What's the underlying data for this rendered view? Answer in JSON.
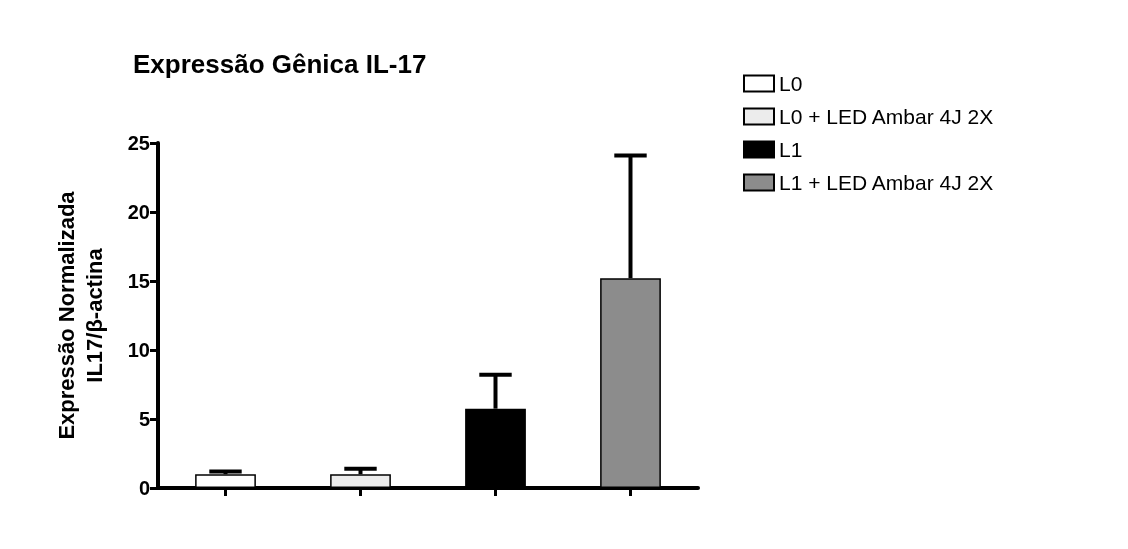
{
  "chart_data": {
    "type": "bar",
    "title": "Expressão Gênica IL-17",
    "ylabel": "Expressão Normalizada\nIL17/β-actina",
    "categories": [
      null,
      null,
      null,
      null
    ],
    "series": [
      {
        "name": "L0",
        "color": "#ffffff",
        "values": [
          1.0,
          null,
          null,
          null
        ],
        "errors": [
          [
            1.0,
            1.2
          ],
          null,
          null,
          null
        ]
      },
      {
        "name": "L0 + LED Ambar 4J 2X",
        "color": "#ececec",
        "values": [
          null,
          1.0,
          null,
          null
        ],
        "errors": [
          null,
          [
            1.0,
            1.4
          ],
          null,
          null
        ]
      },
      {
        "name": "L1",
        "color": "#000000",
        "values": [
          null,
          null,
          5.75,
          null
        ],
        "errors": [
          null,
          null,
          [
            5.75,
            8.2
          ],
          null
        ]
      },
      {
        "name": "L1 + LED Ambar 4J 2X",
        "color": "#8c8c8c",
        "values": [
          null,
          null,
          null,
          15.2
        ],
        "errors": [
          null,
          null,
          null,
          [
            15.2,
            24.1
          ]
        ]
      }
    ],
    "ylim": [
      0,
      25
    ],
    "yticks": [
      0,
      5,
      10,
      15,
      20,
      25
    ],
    "grid": false,
    "legend": "top right"
  }
}
